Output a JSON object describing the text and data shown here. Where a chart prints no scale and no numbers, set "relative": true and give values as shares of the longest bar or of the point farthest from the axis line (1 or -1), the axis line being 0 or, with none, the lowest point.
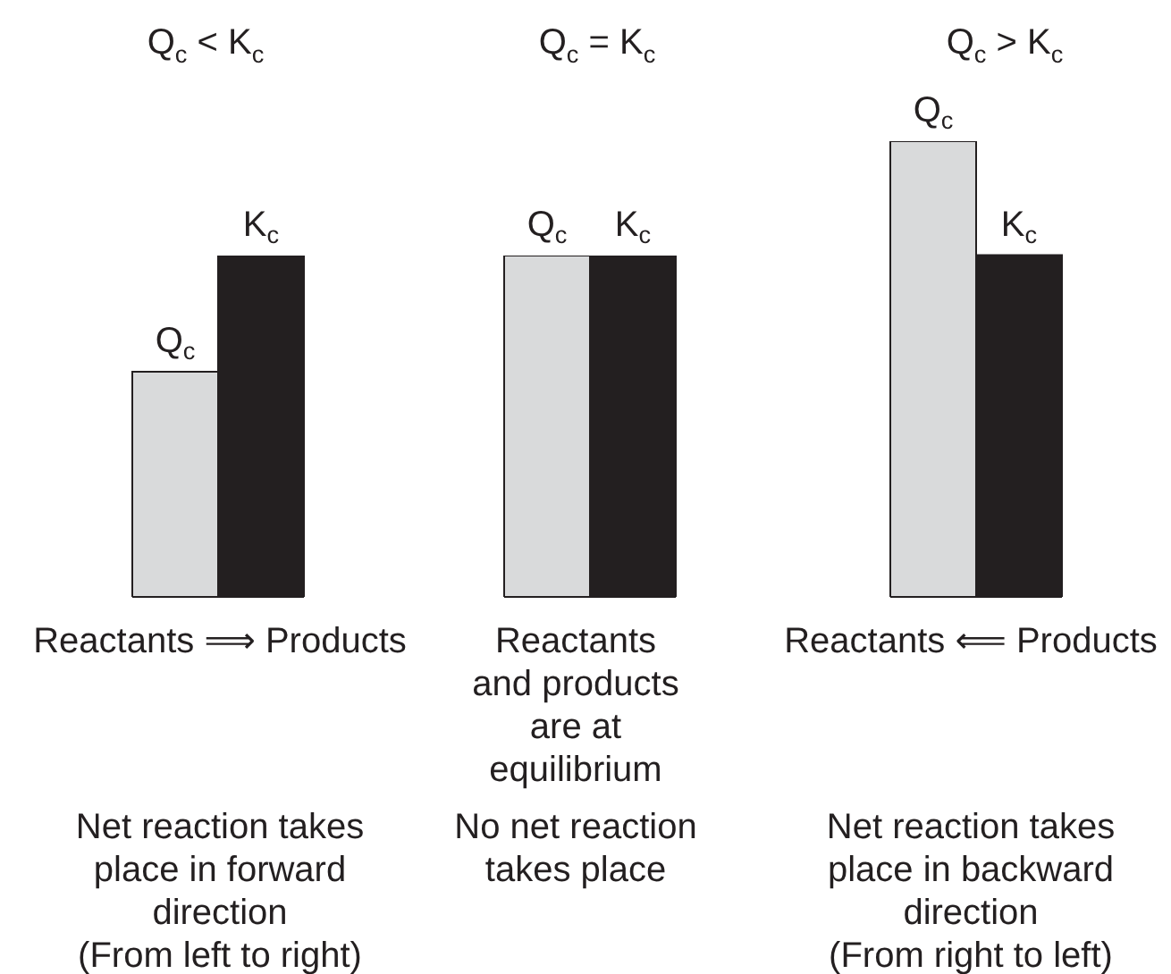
{
  "chart_data": [
    {
      "type": "bar",
      "title": "Q$_{c}$ < K$_{c}$",
      "categories": [
        null
      ],
      "relative": true,
      "series": [
        {
          "name": "Q$_{c}$",
          "color": "#d9dadb",
          "values": [
            0.66
          ]
        },
        {
          "name": "K$_{c}$",
          "color": "#231f20",
          "values": [
            1
          ]
        }
      ],
      "annotations": [
        "Reactants ⟹ Products",
        "Net reaction takes\nplace in forward\ndirection\n(From left to right)"
      ]
    },
    {
      "type": "bar",
      "title": "Q$_{c}$ = K$_{c}$",
      "categories": [
        null
      ],
      "relative": true,
      "series": [
        {
          "name": "Q$_{c}$",
          "color": "#d9dadb",
          "values": [
            1
          ]
        },
        {
          "name": "K$_{c}$",
          "color": "#231f20",
          "values": [
            1
          ]
        }
      ],
      "annotations": [
        "Reactants\nand products\nare at\nequilibrium",
        "No net reaction\ntakes place"
      ]
    },
    {
      "type": "bar",
      "title": "Q$_{c}$ > K$_{c}$",
      "categories": [
        null
      ],
      "relative": true,
      "series": [
        {
          "name": "Q$_{c}$",
          "color": "#d9dadb",
          "values": [
            1
          ]
        },
        {
          "name": "K$_{c}$",
          "color": "#231f20",
          "values": [
            0.75
          ]
        }
      ],
      "annotations": [
        "Reactants ⟸ Products",
        "Net reaction takes\nplace in backward\ndirection\n(From right to left)"
      ]
    }
  ]
}
